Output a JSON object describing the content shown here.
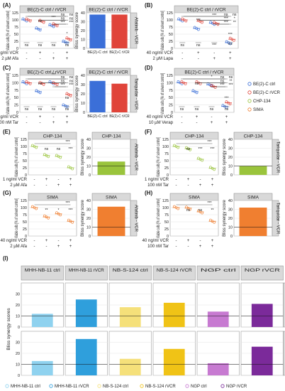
{
  "figure": {
    "legend_top": [
      {
        "label": "BE(2)-C ctrl",
        "color": "#3b6fd8"
      },
      {
        "label": "BE(2)-C rVCR",
        "color": "#e0443a"
      },
      {
        "label": "CHP-134",
        "color": "#9ac43c"
      },
      {
        "label": "SIMA",
        "color": "#f07f30"
      }
    ],
    "legend_bottom": [
      {
        "label": "MHH-NB-11 ctrl",
        "color": "#8fd2ef"
      },
      {
        "label": "MHH-NB-11 rVCR",
        "color": "#2f9fdc"
      },
      {
        "label": "NB-S-124 ctrl",
        "color": "#f5e07a"
      },
      {
        "label": "NB-S-124 rVCR",
        "color": "#f0c316"
      },
      {
        "label": "NGP ctrl",
        "color": "#c77ad1"
      },
      {
        "label": "NGP rVCR",
        "color": "#7b2a9a"
      }
    ]
  },
  "chart_data": [
    {
      "panel": "A",
      "type": "scatter",
      "title": "BE(2)-C ctrl / rVCR",
      "ylabel": "Viable cells [% of solvent control]",
      "ylim": [
        0,
        125
      ],
      "yticks": [
        0,
        25,
        50,
        75,
        100,
        125
      ],
      "row_labels": [
        "40 ng/ml VCR",
        "2 µM Afa"
      ],
      "conditions": [
        [
          "-",
          "-"
        ],
        [
          "+",
          "-"
        ],
        [
          "-",
          "+"
        ],
        [
          "+",
          "+"
        ]
      ],
      "series": [
        {
          "name": "BE(2)-C ctrl",
          "values": [
            100,
            68,
            80,
            22
          ]
        },
        {
          "name": "BE(2)-C rVCR",
          "values": [
            100,
            95,
            83,
            33
          ]
        }
      ],
      "sig_top": [
        "ns",
        "ns",
        "ns",
        "ns",
        "***",
        "***"
      ],
      "sig_mid": [
        "ns",
        "***",
        "*"
      ],
      "sig_bottom": [
        "ns",
        "ns",
        "ns",
        "ns"
      ]
    },
    {
      "panel": "A",
      "type": "bar",
      "title": "BE(2)-C ctrl / rVCR",
      "facet": "Afatinib - VCR",
      "ylabel": "Bliss synergy score",
      "ylim": [
        0,
        40
      ],
      "yticks": [
        0,
        10,
        20,
        30,
        40
      ],
      "categories": [
        "BE(2)-C ctrl",
        "BE(2)-C rVCR"
      ],
      "values": [
        38,
        38
      ]
    },
    {
      "panel": "B",
      "type": "scatter",
      "title": "BE(2)-C ctrl / rVCR",
      "ylabel": "Viable cells [% of solvent control]",
      "ylim": [
        0,
        125
      ],
      "yticks": [
        0,
        25,
        50,
        75,
        100,
        125
      ],
      "row_labels": [
        "40 ng/ml VCR",
        "2 µM Lapa"
      ],
      "conditions": [
        [
          "-",
          "-"
        ],
        [
          "+",
          "-"
        ],
        [
          "-",
          "+"
        ],
        [
          "+",
          "+"
        ]
      ],
      "series": [
        {
          "name": "BE(2)-C ctrl",
          "values": [
            100,
            70,
            88,
            20
          ]
        },
        {
          "name": "BE(2)-C rVCR",
          "values": [
            100,
            95,
            88,
            32
          ]
        }
      ],
      "sig_top": [
        "ns",
        "ns",
        "***",
        "*",
        "***",
        "**"
      ],
      "sig_mid": [
        "***",
        "***",
        "***"
      ],
      "sig_bottom": [
        "ns",
        "ns",
        "***",
        "***"
      ]
    },
    {
      "panel": "C",
      "type": "scatter",
      "title": "BE(2)-C ctrl / rVCR",
      "ylabel": "Viable cells [% of solvent control]",
      "ylim": [
        0,
        125
      ],
      "yticks": [
        0,
        25,
        50,
        75,
        100,
        125
      ],
      "row_labels": [
        "40 ng/ml VCR",
        "100 nM Tar"
      ],
      "conditions": [
        [
          "-",
          "-"
        ],
        [
          "+",
          "-"
        ],
        [
          "-",
          "+"
        ],
        [
          "+",
          "+"
        ]
      ],
      "series": [
        {
          "name": "BE(2)-C ctrl",
          "values": [
            100,
            70,
            100,
            22
          ]
        },
        {
          "name": "BE(2)-C rVCR",
          "values": [
            100,
            98,
            97,
            60
          ]
        }
      ],
      "sig_top": [
        "ns",
        "ns",
        "ns",
        "ns",
        "***",
        "***"
      ],
      "sig_mid": [
        "ns",
        "***",
        "ns"
      ],
      "sig_bottom": [
        "ns",
        "ns",
        "ns",
        "ns"
      ]
    },
    {
      "panel": "C",
      "type": "bar",
      "title": "BE(2)-C ctrl / rVCR",
      "facet": "Tariquidar - VCR",
      "ylabel": "Bliss synergy score",
      "ylim": [
        0,
        40
      ],
      "yticks": [
        0,
        10,
        20,
        30,
        40
      ],
      "categories": [
        "BE(2)-C ctrl",
        "BE(2)-C rVCR"
      ],
      "values": [
        34,
        31
      ]
    },
    {
      "panel": "D",
      "type": "scatter",
      "title": "BE(2)-C ctrl / rVCR",
      "ylabel": "Viable cells [% of solvent control]",
      "ylim": [
        0,
        125
      ],
      "yticks": [
        0,
        25,
        50,
        75,
        100,
        125
      ],
      "row_labels": [
        "40 ng/ml VCR",
        "10 µM Verap"
      ],
      "conditions": [
        [
          "-",
          "-"
        ],
        [
          "+",
          "-"
        ],
        [
          "-",
          "+"
        ],
        [
          "+",
          "+"
        ]
      ],
      "series": [
        {
          "name": "BE(2)-C ctrl",
          "values": [
            100,
            70,
            93,
            20
          ]
        },
        {
          "name": "BE(2)-C rVCR",
          "values": [
            100,
            100,
            88,
            32
          ]
        }
      ],
      "sig_top": [
        "ns",
        "ns",
        "ns",
        "**",
        "***",
        "***"
      ],
      "sig_mid": [
        "ns",
        "*",
        "***"
      ],
      "sig_bottom": [
        "ns",
        "ns",
        "ns",
        "ns"
      ]
    },
    {
      "panel": "E",
      "type": "scatter",
      "title": "CHP-134",
      "ylabel": "Viable cells [% of solvent control]",
      "ylim": [
        0,
        125
      ],
      "yticks": [
        0,
        25,
        50,
        75,
        100,
        125
      ],
      "row_labels": [
        "1 ng/ml VCR",
        "2 µM Afa"
      ],
      "conditions": [
        [
          "-",
          "-"
        ],
        [
          "+",
          "-"
        ],
        [
          "-",
          "+"
        ],
        [
          "+",
          "+"
        ]
      ],
      "series": [
        {
          "name": "CHP-134",
          "values": [
            100,
            68,
            65,
            25
          ]
        }
      ],
      "sig_bracket": "***",
      "sig_pair": [
        "ns",
        "ns",
        "***"
      ]
    },
    {
      "panel": "E",
      "type": "bar",
      "title": "CHP-134",
      "facet": "Afatinib - VCR",
      "ylabel": "Bliss synergy score",
      "ylim": [
        0,
        40
      ],
      "yticks": [
        0,
        10,
        20,
        30,
        40
      ],
      "categories": [
        "CHP-134"
      ],
      "values": [
        15
      ]
    },
    {
      "panel": "F",
      "type": "scatter",
      "title": "CHP-134",
      "ylabel": "Viable cells [% of solvent control]",
      "ylim": [
        0,
        125
      ],
      "yticks": [
        0,
        25,
        50,
        75,
        100,
        125
      ],
      "row_labels": [
        "1 ng/ml VCR",
        "100 nM Tar"
      ],
      "conditions": [
        [
          "-",
          "-"
        ],
        [
          "+",
          "-"
        ],
        [
          "-",
          "+"
        ],
        [
          "+",
          "+"
        ]
      ],
      "series": [
        {
          "name": "CHP-134",
          "values": [
            100,
            92,
            55,
            23
          ]
        }
      ],
      "sig_bracket": "***",
      "sig_pair": [
        "ns",
        "***",
        "***"
      ]
    },
    {
      "panel": "F",
      "type": "bar",
      "title": "CHP-134",
      "facet": "Tariquidar - VCR",
      "ylabel": "Bliss synergy score",
      "ylim": [
        0,
        40
      ],
      "yticks": [
        0,
        10,
        20,
        30,
        40
      ],
      "categories": [
        "CHP-134"
      ],
      "values": [
        10
      ]
    },
    {
      "panel": "G",
      "type": "scatter",
      "title": "SIMA",
      "ylabel": "Viable cells [% of solvent control]",
      "ylim": [
        0,
        125
      ],
      "yticks": [
        0,
        25,
        50,
        75,
        100,
        125
      ],
      "row_labels": [
        "40 ng/ml VCR",
        "2 µM Afa"
      ],
      "conditions": [
        [
          "-",
          "-"
        ],
        [
          "+",
          "-"
        ],
        [
          "-",
          "+"
        ],
        [
          "+",
          "+"
        ]
      ],
      "series": [
        {
          "name": "SIMA",
          "values": [
            100,
            67,
            78,
            52
          ]
        }
      ],
      "sig_bracket": "***",
      "sig_pair": [
        "**",
        "*",
        "***"
      ]
    },
    {
      "panel": "G",
      "type": "bar",
      "title": "SIMA",
      "facet": "Afatinib - VCR",
      "ylabel": "Bliss synergy score",
      "ylim": [
        0,
        40
      ],
      "yticks": [
        0,
        10,
        20,
        30,
        40
      ],
      "categories": [
        "SIMA"
      ],
      "values": [
        33
      ]
    },
    {
      "panel": "H",
      "type": "scatter",
      "title": "SIMA",
      "ylabel": "Viable cells [% of solvent control]",
      "ylim": [
        0,
        125
      ],
      "yticks": [
        0,
        25,
        50,
        75,
        100,
        125
      ],
      "row_labels": [
        "40 ng/ml VCR",
        "100 nM Tar"
      ],
      "conditions": [
        [
          "-",
          "-"
        ],
        [
          "+",
          "-"
        ],
        [
          "-",
          "+"
        ],
        [
          "+",
          "+"
        ]
      ],
      "series": [
        {
          "name": "SIMA",
          "values": [
            100,
            98,
            85,
            52
          ]
        }
      ],
      "sig_bracket": "***",
      "sig_pair": [
        "ns",
        "ns",
        "**"
      ]
    },
    {
      "panel": "H",
      "type": "bar",
      "title": "SIMA",
      "facet": "Tariquidar - VCR",
      "ylabel": "Bliss synergy score",
      "ylim": [
        0,
        40
      ],
      "yticks": [
        0,
        10,
        20,
        30,
        40
      ],
      "categories": [
        "SIMA"
      ],
      "values": [
        32
      ]
    },
    {
      "panel": "I",
      "type": "bar",
      "ylabel": "Bliss synergy scores",
      "ylim": [
        0,
        40
      ],
      "yticks": [
        0,
        10,
        20,
        30
      ],
      "columns": [
        "MHH-NB-11 ctrl",
        "MHH-NB-11 rVCR",
        "NB-S-124 ctrl",
        "NB-S-124 rVCR",
        "NGP ctrl",
        "NGP rVCR"
      ],
      "rows": [
        {
          "facet": "Afatinib - VCR",
          "values": [
            12,
            25,
            18,
            22,
            14,
            21
          ]
        },
        {
          "facet": "Tariquidar - VCR",
          "values": [
            13,
            33,
            15,
            24,
            11,
            26
          ]
        }
      ]
    }
  ]
}
